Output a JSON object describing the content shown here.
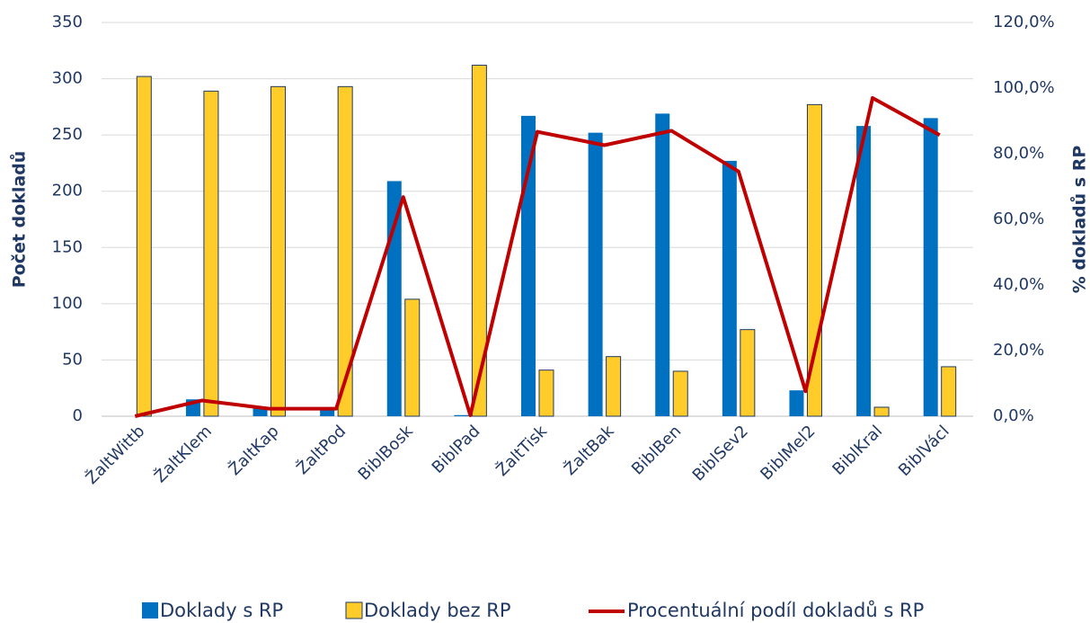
{
  "chart_data": {
    "type": "bar",
    "categories": [
      "ŽaltWittb",
      "ŽaltKlem",
      "ŽaltKap",
      "ŽaltPod",
      "BiblBosk",
      "BiblPad",
      "ŽaltTisk",
      "ŽaltBak",
      "BiblBen",
      "BiblSev2",
      "BiblMel2",
      "BiblKral",
      "BiblVácl"
    ],
    "y_label": "Počet dokladů",
    "y2_label": "% dokladů s RP",
    "ylim": [
      0,
      350
    ],
    "yticks": [
      0,
      50,
      100,
      150,
      200,
      250,
      300,
      350
    ],
    "y2lim": [
      0,
      120
    ],
    "y2ticks": [
      {
        "value": 0,
        "label": "0,0%"
      },
      {
        "value": 20,
        "label": "20,0%"
      },
      {
        "value": 40,
        "label": "40,0%"
      },
      {
        "value": 60,
        "label": "60,0%"
      },
      {
        "value": 80,
        "label": "80,0%"
      },
      {
        "value": 100,
        "label": "100,0%"
      },
      {
        "value": 120,
        "label": "120,0%"
      }
    ],
    "grid": true,
    "legend": "bottom",
    "series": [
      {
        "name": "Doklady s RP",
        "type": "bar",
        "color": "#0070c0",
        "values": [
          0,
          15,
          7,
          7,
          209,
          1,
          267,
          252,
          269,
          227,
          23,
          258,
          265
        ]
      },
      {
        "name": "Doklady bez RP",
        "type": "bar",
        "color": "#ffcc29",
        "values": [
          302,
          289,
          293,
          293,
          104,
          312,
          41,
          53,
          40,
          77,
          277,
          8,
          44
        ]
      },
      {
        "name": "Procentuální podíl dokladů s RP",
        "type": "line",
        "axis": "y2",
        "color": "#c00000",
        "values": [
          0,
          4.8,
          2.3,
          2.3,
          66.8,
          0.3,
          86.7,
          82.6,
          87,
          74.6,
          7.6,
          97,
          85.7
        ]
      }
    ]
  }
}
